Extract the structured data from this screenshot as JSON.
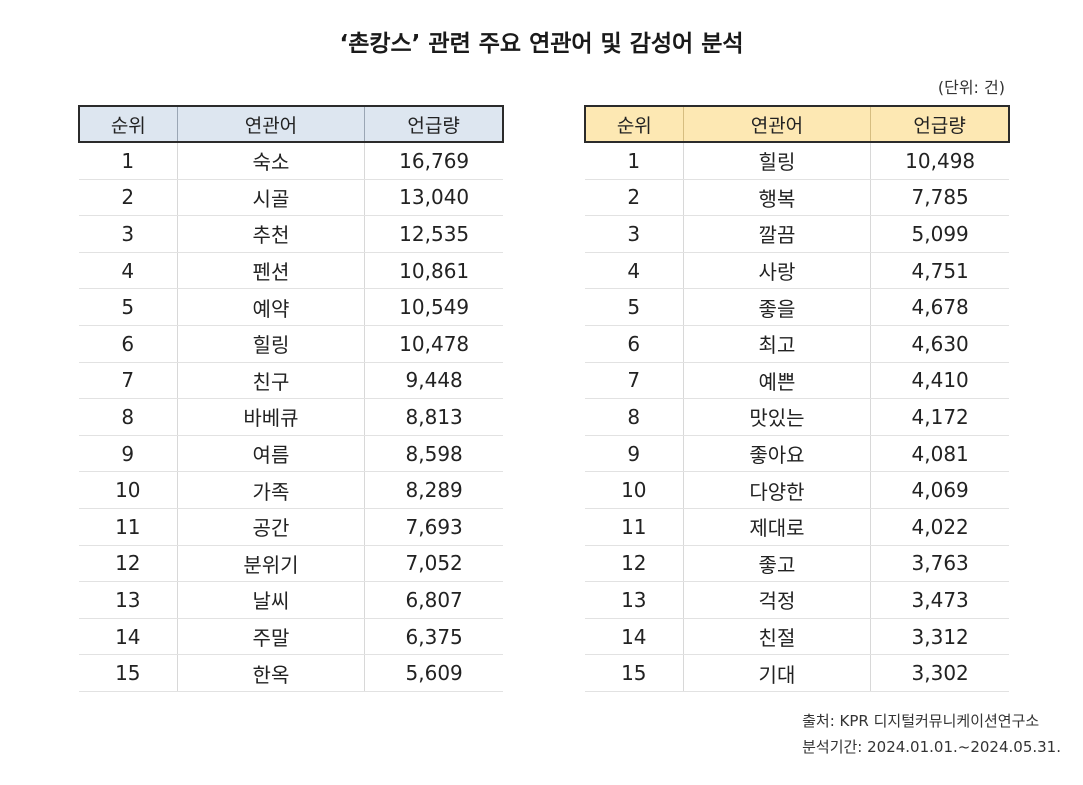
{
  "title": "‘촌캉스’ 관련 주요 연관어 및 감성어 분석",
  "unit": "(단위: 건)",
  "left_table": {
    "headers": [
      "순위",
      "연관어",
      "언급량"
    ],
    "rows": [
      [
        "1",
        "숙소",
        "16,769"
      ],
      [
        "2",
        "시골",
        "13,040"
      ],
      [
        "3",
        "추천",
        "12,535"
      ],
      [
        "4",
        "펜션",
        "10,861"
      ],
      [
        "5",
        "예약",
        "10,549"
      ],
      [
        "6",
        "힐링",
        "10,478"
      ],
      [
        "7",
        "친구",
        "9,448"
      ],
      [
        "8",
        "바베큐",
        "8,813"
      ],
      [
        "9",
        "여름",
        "8,598"
      ],
      [
        "10",
        "가족",
        "8,289"
      ],
      [
        "11",
        "공간",
        "7,693"
      ],
      [
        "12",
        "분위기",
        "7,052"
      ],
      [
        "13",
        "날씨",
        "6,807"
      ],
      [
        "14",
        "주말",
        "6,375"
      ],
      [
        "15",
        "한옥",
        "5,609"
      ]
    ]
  },
  "right_table": {
    "headers": [
      "순위",
      "연관어",
      "언급량"
    ],
    "rows": [
      [
        "1",
        "힐링",
        "10,498"
      ],
      [
        "2",
        "행복",
        "7,785"
      ],
      [
        "3",
        "깔끔",
        "5,099"
      ],
      [
        "4",
        "사랑",
        "4,751"
      ],
      [
        "5",
        "좋을",
        "4,678"
      ],
      [
        "6",
        "최고",
        "4,630"
      ],
      [
        "7",
        "예쁜",
        "4,410"
      ],
      [
        "8",
        "맛있는",
        "4,172"
      ],
      [
        "9",
        "좋아요",
        "4,081"
      ],
      [
        "10",
        "다양한",
        "4,069"
      ],
      [
        "11",
        "제대로",
        "4,022"
      ],
      [
        "12",
        "좋고",
        "3,763"
      ],
      [
        "13",
        "걱정",
        "3,473"
      ],
      [
        "14",
        "친절",
        "3,312"
      ],
      [
        "15",
        "기대",
        "3,302"
      ]
    ]
  },
  "footer": {
    "source": "출처: KPR 디지털커뮤니케이션연구소",
    "period": "분석기간: 2024.01.01.~2024.05.31."
  },
  "colors": {
    "left_header_bg": "#dde6f0",
    "right_header_bg": "#fde8b3"
  }
}
